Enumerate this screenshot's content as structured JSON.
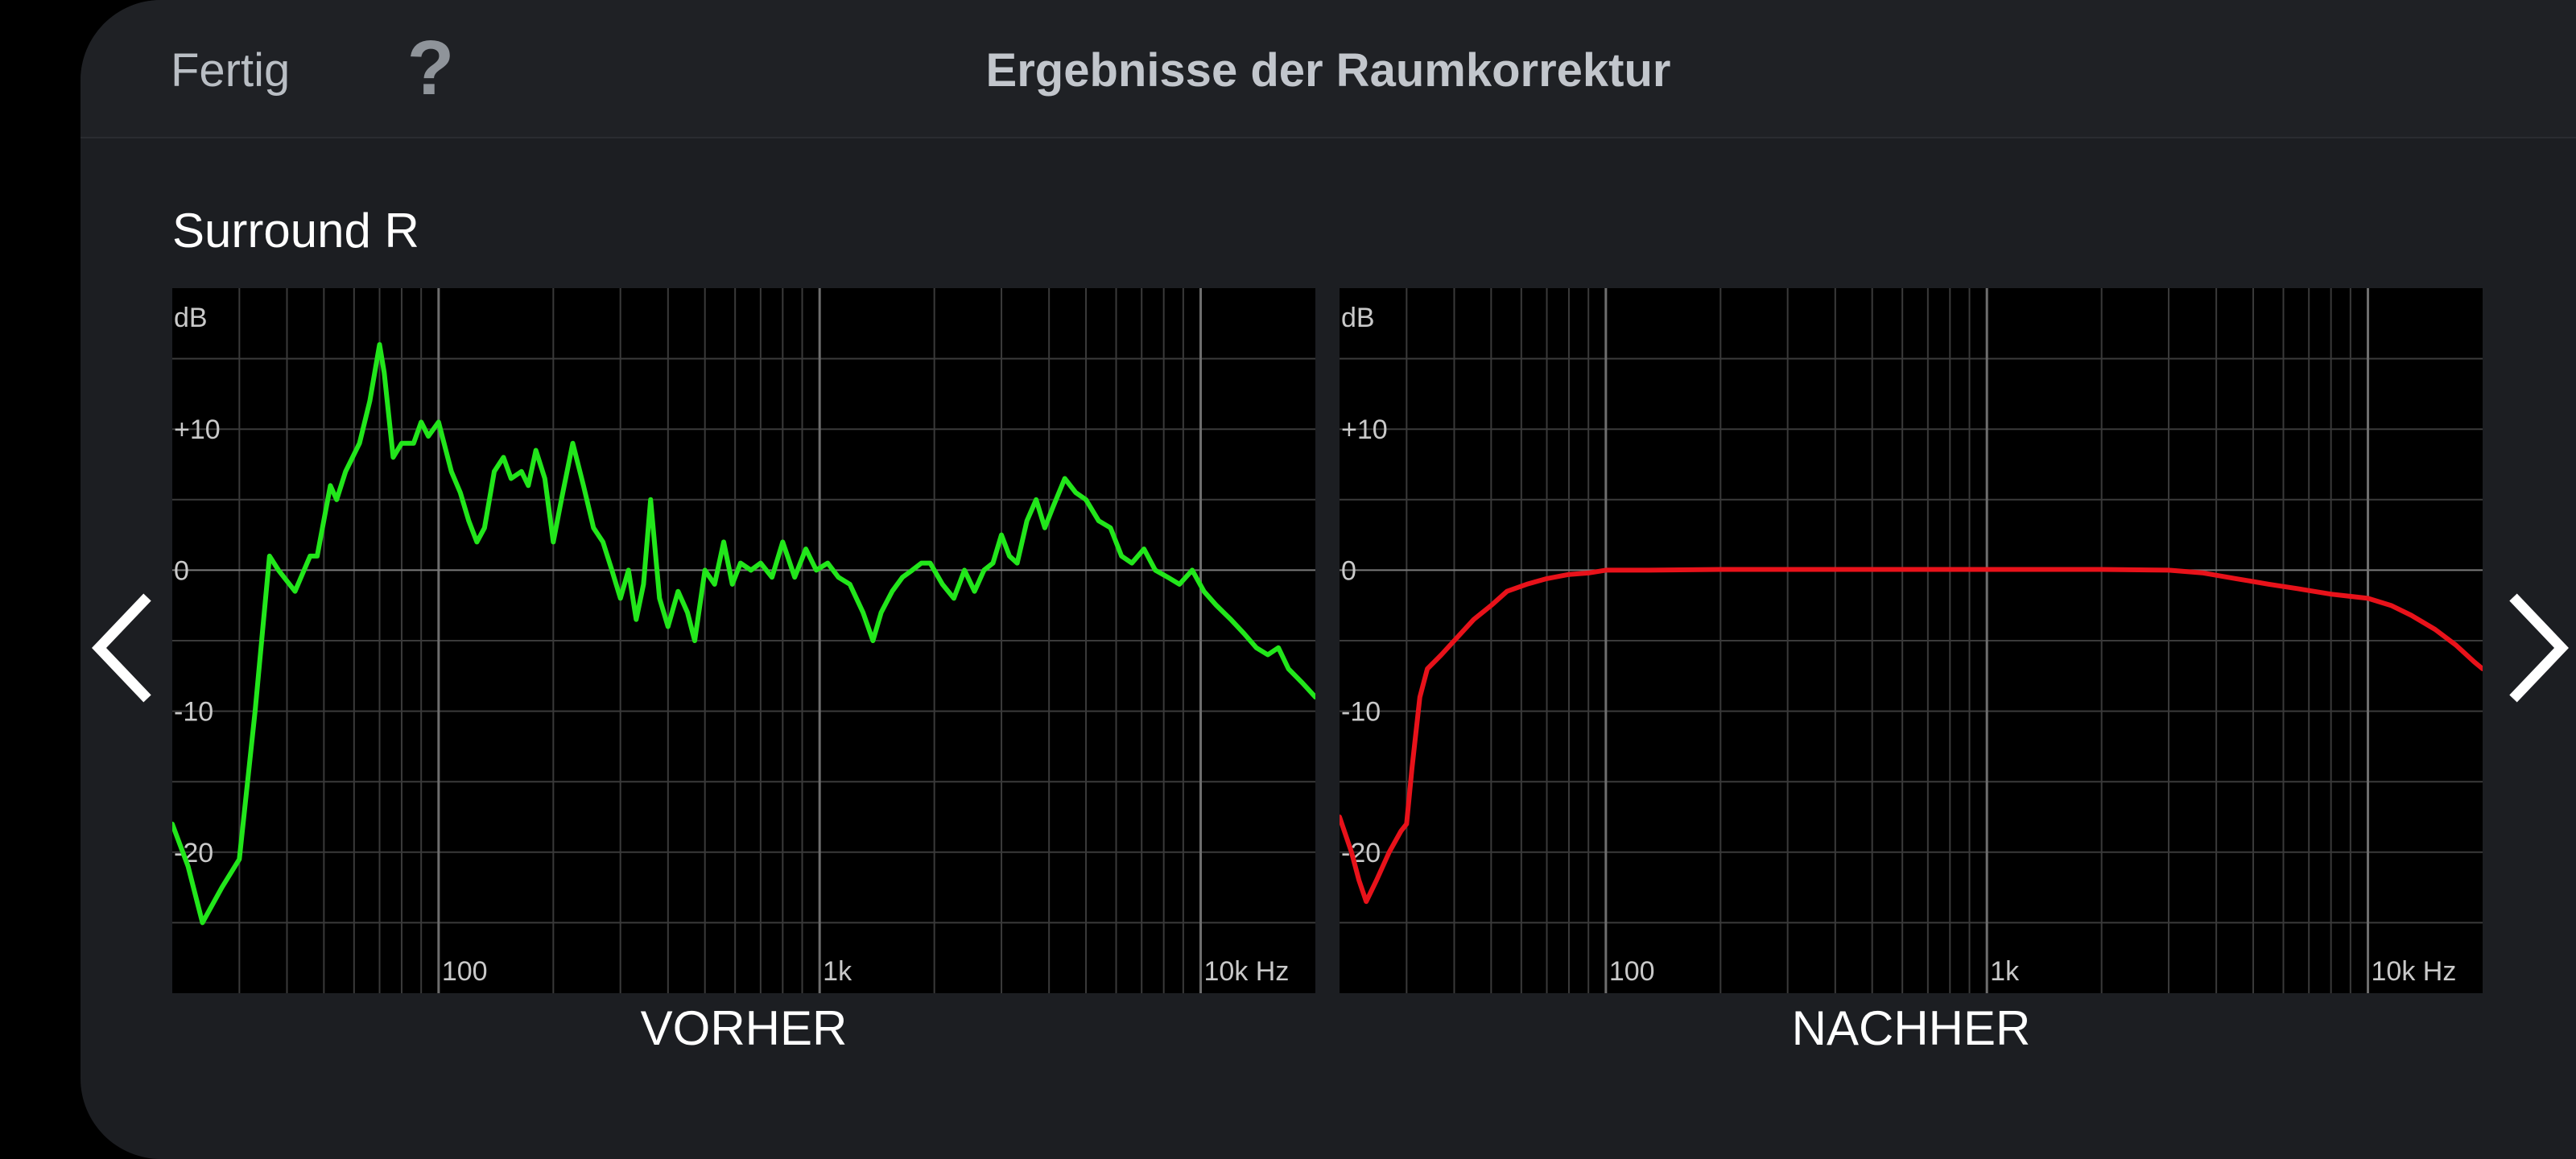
{
  "header": {
    "done_label": "Fertig",
    "help_label": "?",
    "title": "Ergebnisse der Raumkorrektur"
  },
  "speaker": "Surround R",
  "nav": {
    "prev_icon": "chevron-left-icon",
    "next_icon": "chevron-right-icon"
  },
  "colors": {
    "before": "#22e61b",
    "after": "#e8121a",
    "grid": "#3a3a3a",
    "zero_line": "#7a7a7a"
  },
  "chart_data": [
    {
      "type": "line",
      "caption": "VORHER",
      "x_scale": "log",
      "xlim": [
        20,
        20000
      ],
      "ylim": [
        -30,
        20
      ],
      "ylabel": "dB",
      "y_ticks": [
        {
          "value": 10,
          "label": "+10"
        },
        {
          "value": 0,
          "label": "0"
        },
        {
          "value": -10,
          "label": "-10"
        },
        {
          "value": -20,
          "label": "-20"
        }
      ],
      "x_ticks": [
        {
          "value": 100,
          "label": "100"
        },
        {
          "value": 1000,
          "label": "1k"
        },
        {
          "value": 10000,
          "label": "10k Hz"
        }
      ],
      "grid": true,
      "series": [
        {
          "color": "#22e61b",
          "points": [
            [
              20,
              -18
            ],
            [
              22,
              -21
            ],
            [
              24,
              -25
            ],
            [
              27,
              -22.5
            ],
            [
              30,
              -20.5
            ],
            [
              33,
              -10
            ],
            [
              36,
              1
            ],
            [
              38,
              0
            ],
            [
              42,
              -1.5
            ],
            [
              46,
              1
            ],
            [
              48,
              1
            ],
            [
              52,
              6
            ],
            [
              54,
              5
            ],
            [
              57,
              7
            ],
            [
              62,
              9
            ],
            [
              66,
              12
            ],
            [
              70,
              16
            ],
            [
              72,
              14
            ],
            [
              76,
              8
            ],
            [
              80,
              9
            ],
            [
              86,
              9
            ],
            [
              90,
              10.5
            ],
            [
              94,
              9.5
            ],
            [
              100,
              10.5
            ],
            [
              108,
              7
            ],
            [
              114,
              5.5
            ],
            [
              120,
              3.5
            ],
            [
              126,
              2
            ],
            [
              132,
              3
            ],
            [
              140,
              7
            ],
            [
              148,
              8
            ],
            [
              155,
              6.5
            ],
            [
              165,
              7
            ],
            [
              172,
              6
            ],
            [
              180,
              8.5
            ],
            [
              190,
              6.5
            ],
            [
              200,
              2
            ],
            [
              210,
              5
            ],
            [
              225,
              9
            ],
            [
              240,
              6
            ],
            [
              255,
              3
            ],
            [
              270,
              2
            ],
            [
              285,
              0
            ],
            [
              300,
              -2
            ],
            [
              315,
              0
            ],
            [
              330,
              -3.5
            ],
            [
              345,
              -1
            ],
            [
              360,
              5
            ],
            [
              380,
              -2
            ],
            [
              400,
              -4
            ],
            [
              425,
              -1.5
            ],
            [
              450,
              -3
            ],
            [
              470,
              -5
            ],
            [
              500,
              0
            ],
            [
              530,
              -1
            ],
            [
              560,
              2
            ],
            [
              590,
              -1
            ],
            [
              620,
              0.5
            ],
            [
              660,
              0
            ],
            [
              700,
              0.5
            ],
            [
              750,
              -0.5
            ],
            [
              800,
              2
            ],
            [
              860,
              -0.5
            ],
            [
              920,
              1.5
            ],
            [
              980,
              0
            ],
            [
              1050,
              0.5
            ],
            [
              1120,
              -0.5
            ],
            [
              1200,
              -1
            ],
            [
              1300,
              -3
            ],
            [
              1380,
              -5
            ],
            [
              1450,
              -3
            ],
            [
              1550,
              -1.5
            ],
            [
              1650,
              -0.5
            ],
            [
              1750,
              0
            ],
            [
              1850,
              0.5
            ],
            [
              1950,
              0.5
            ],
            [
              2100,
              -1
            ],
            [
              2250,
              -2
            ],
            [
              2400,
              0
            ],
            [
              2550,
              -1.5
            ],
            [
              2700,
              0
            ],
            [
              2850,
              0.5
            ],
            [
              3000,
              2.5
            ],
            [
              3150,
              1
            ],
            [
              3300,
              0.5
            ],
            [
              3500,
              3.5
            ],
            [
              3700,
              5
            ],
            [
              3900,
              3
            ],
            [
              4100,
              4.5
            ],
            [
              4400,
              6.5
            ],
            [
              4700,
              5.5
            ],
            [
              5000,
              5
            ],
            [
              5400,
              3.5
            ],
            [
              5800,
              3
            ],
            [
              6200,
              1
            ],
            [
              6600,
              0.5
            ],
            [
              7100,
              1.5
            ],
            [
              7600,
              0
            ],
            [
              8200,
              -0.5
            ],
            [
              8800,
              -1
            ],
            [
              9500,
              0
            ],
            [
              10200,
              -1.5
            ],
            [
              11000,
              -2.5
            ],
            [
              12000,
              -3.5
            ],
            [
              13000,
              -4.5
            ],
            [
              14000,
              -5.5
            ],
            [
              15000,
              -6
            ],
            [
              16000,
              -5.5
            ],
            [
              17000,
              -7
            ],
            [
              18500,
              -8
            ],
            [
              20000,
              -9
            ]
          ]
        }
      ]
    },
    {
      "type": "line",
      "caption": "NACHHER",
      "x_scale": "log",
      "xlim": [
        20,
        20000
      ],
      "ylim": [
        -30,
        20
      ],
      "ylabel": "dB",
      "y_ticks": [
        {
          "value": 10,
          "label": "+10"
        },
        {
          "value": 0,
          "label": "0"
        },
        {
          "value": -10,
          "label": "-10"
        },
        {
          "value": -20,
          "label": "-20"
        }
      ],
      "x_ticks": [
        {
          "value": 100,
          "label": "100"
        },
        {
          "value": 1000,
          "label": "1k"
        },
        {
          "value": 10000,
          "label": "10k Hz"
        }
      ],
      "grid": true,
      "series": [
        {
          "color": "#e8121a",
          "points": [
            [
              20,
              -17.5
            ],
            [
              21.5,
              -20
            ],
            [
              22.5,
              -22
            ],
            [
              23.5,
              -23.5
            ],
            [
              25,
              -22
            ],
            [
              27,
              -20
            ],
            [
              29,
              -18.5
            ],
            [
              30,
              -18
            ],
            [
              31,
              -14
            ],
            [
              32.5,
              -9
            ],
            [
              34,
              -7
            ],
            [
              37,
              -6
            ],
            [
              40,
              -5
            ],
            [
              45,
              -3.5
            ],
            [
              50,
              -2.5
            ],
            [
              55,
              -1.5
            ],
            [
              62,
              -1
            ],
            [
              70,
              -0.6
            ],
            [
              80,
              -0.3
            ],
            [
              90,
              -0.2
            ],
            [
              100,
              0
            ],
            [
              130,
              0
            ],
            [
              200,
              0.05
            ],
            [
              300,
              0.05
            ],
            [
              500,
              0.05
            ],
            [
              1000,
              0.05
            ],
            [
              2000,
              0.05
            ],
            [
              3000,
              0
            ],
            [
              3700,
              -0.2
            ],
            [
              4500,
              -0.6
            ],
            [
              5500,
              -1
            ],
            [
              6500,
              -1.3
            ],
            [
              8000,
              -1.7
            ],
            [
              10000,
              -2
            ],
            [
              11500,
              -2.5
            ],
            [
              13000,
              -3.2
            ],
            [
              15000,
              -4.2
            ],
            [
              17000,
              -5.3
            ],
            [
              19000,
              -6.5
            ],
            [
              20000,
              -7
            ]
          ]
        }
      ]
    }
  ]
}
